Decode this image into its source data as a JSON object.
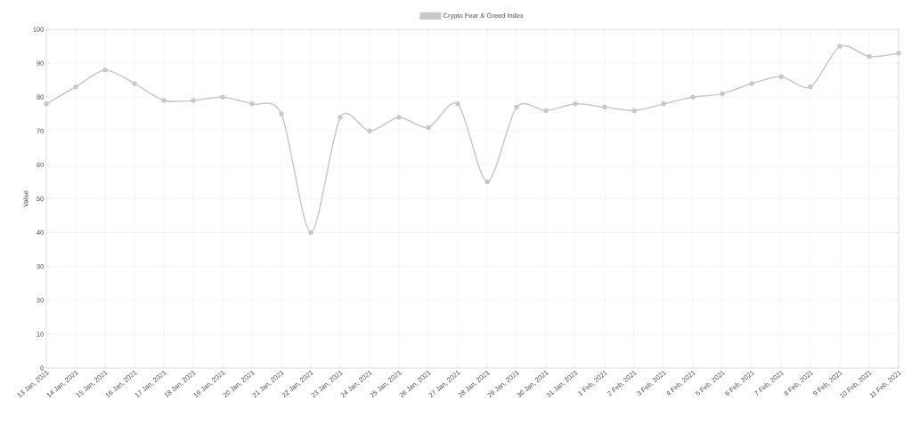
{
  "chart_data": {
    "type": "line",
    "ylabel": "Value",
    "categories": [
      "13 Jan, 2021",
      "14 Jan, 2021",
      "15 Jan, 2021",
      "16 Jan, 2021",
      "17 Jan, 2021",
      "18 Jan, 2021",
      "19 Jan, 2021",
      "20 Jan, 2021",
      "21 Jan, 2021",
      "22 Jan, 2021",
      "23 Jan, 2021",
      "24 Jan, 2021",
      "25 Jan, 2021",
      "26 Jan, 2021",
      "27 Jan, 2021",
      "28 Jan, 2021",
      "29 Jan, 2021",
      "30 Jan, 2021",
      "31 Jan, 2021",
      "1 Feb, 2021",
      "2 Feb, 2021",
      "3 Feb, 2021",
      "4 Feb, 2021",
      "5 Feb, 2021",
      "6 Feb, 2021",
      "7 Feb, 2021",
      "8 Feb, 2021",
      "9 Feb, 2021",
      "10 Feb, 2021",
      "11 Feb, 2021"
    ],
    "series": [
      {
        "name": "Crypto Fear & Greed Index",
        "color": "#c9c9c9",
        "values": [
          78,
          83,
          88,
          84,
          79,
          79,
          80,
          78,
          75,
          40,
          74,
          70,
          74,
          71,
          78,
          55,
          77,
          76,
          78,
          77,
          76,
          78,
          80,
          81,
          84,
          86,
          83,
          95,
          92,
          93
        ]
      }
    ],
    "ylim": [
      0,
      100
    ],
    "yticks": [
      0,
      10,
      20,
      30,
      40,
      50,
      60,
      70,
      80,
      90,
      100
    ],
    "grid": true,
    "legend": "top",
    "marker": "circle",
    "line_style": "solid"
  }
}
